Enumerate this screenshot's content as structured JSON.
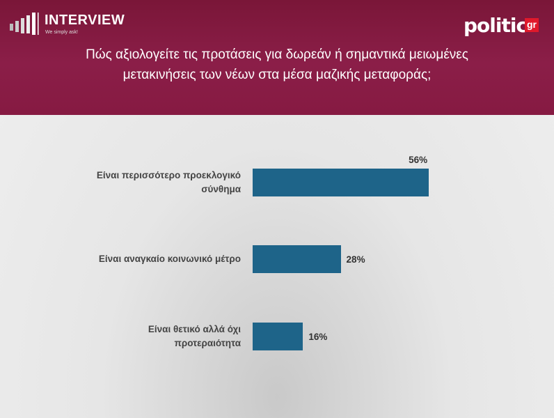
{
  "brand": {
    "name": "INTERVIEW",
    "tagline": "We simply ask!"
  },
  "publisher": {
    "name": "politic",
    "suffix": "gr"
  },
  "chart_data": {
    "type": "bar",
    "orientation": "horizontal",
    "title": "Πώς αξιολογείτε τις προτάσεις για δωρεάν ή σημαντικά μειωμένες μετακινήσεις των νέων στα μέσα μαζικής μεταφοράς;",
    "categories": [
      "Είναι περισσότερο προεκλογικό σύνθημα",
      "Είναι αναγκαίο κοινωνικό μέτρο",
      "Είναι θετικό αλλά όχι προτεραιότητα"
    ],
    "values": [
      56,
      28,
      16
    ],
    "value_labels": [
      "56%",
      "28%",
      "16%"
    ],
    "color": "#1e6489"
  }
}
